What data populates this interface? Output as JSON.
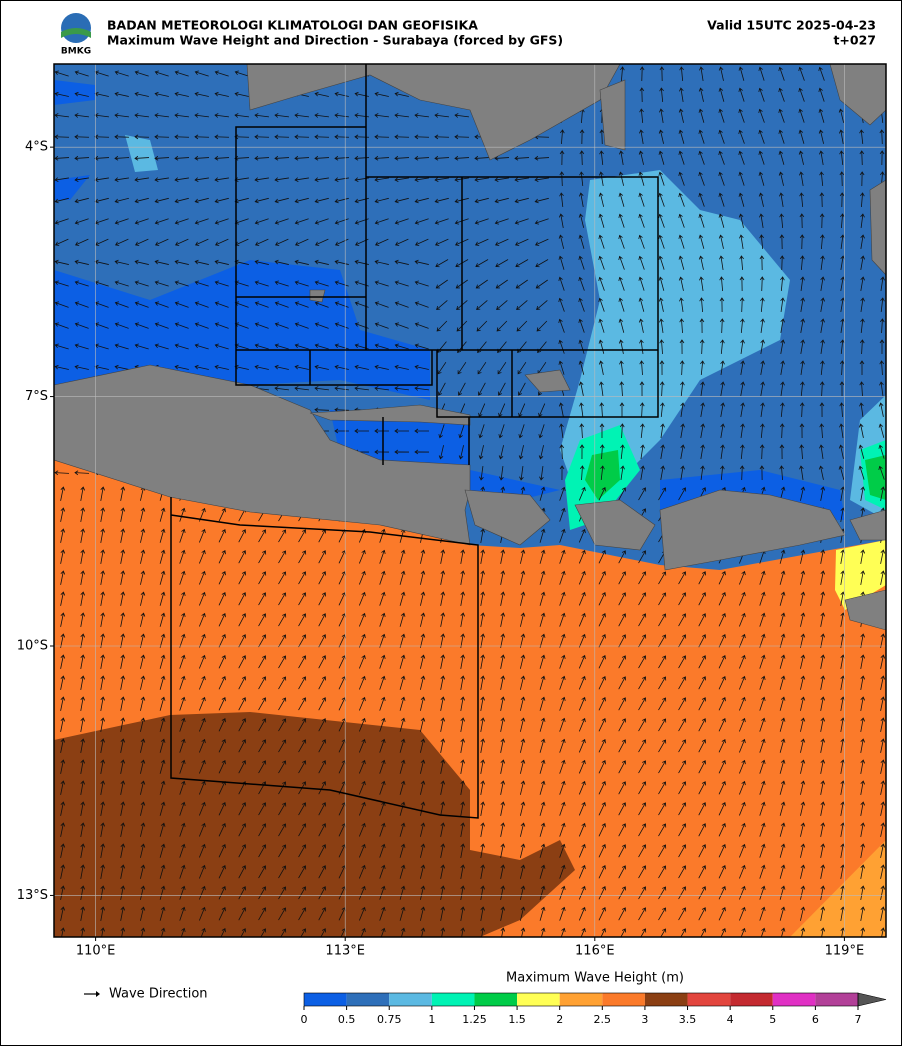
{
  "header": {
    "logo_text": "BMKG",
    "agency": "BADAN METEOROLOGI KLIMATOLOGI DAN GEOFISIKA",
    "title": "Maximum Wave Height and Direction - Surabaya (forced by GFS)",
    "valid": "Valid 15UTC 2025-04-23",
    "lead_time": "t+027"
  },
  "map": {
    "xlim": [
      109.5,
      119.5
    ],
    "ylim": [
      -13.5,
      -3
    ],
    "xticks": [
      {
        "value": 110,
        "label": "110°E"
      },
      {
        "value": 113,
        "label": "113°E"
      },
      {
        "value": 116,
        "label": "116°E"
      },
      {
        "value": 119,
        "label": "119°E"
      }
    ],
    "yticks": [
      {
        "value": -4,
        "label": "4°S"
      },
      {
        "value": -7,
        "label": "7°S"
      },
      {
        "value": -10,
        "label": "10°S"
      },
      {
        "value": -13,
        "label": "13°S"
      }
    ],
    "grid": true
  },
  "legend": {
    "arrow_label": "Wave Direction"
  },
  "colorbar": {
    "title": "Maximum Wave Height (m)",
    "ticks": [
      0,
      0.5,
      0.75,
      1,
      1.25,
      1.5,
      2,
      2.5,
      3,
      3.5,
      4,
      5,
      6,
      7
    ],
    "colors": [
      "#0c5fe4",
      "#2e6fb9",
      "#5bb9e2",
      "#00f3b4",
      "#00cc48",
      "#ffff55",
      "#ffa133",
      "#fb7a2a",
      "#8b3f13",
      "#e2453d",
      "#c42a30",
      "#e030c4",
      "#b24098"
    ]
  }
}
